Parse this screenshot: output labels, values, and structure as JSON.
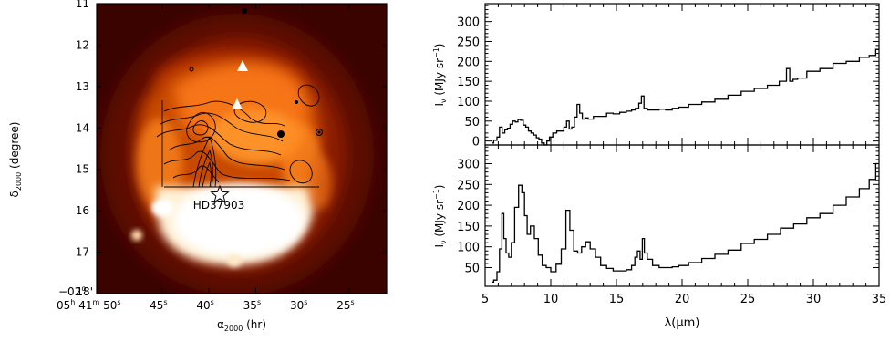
{
  "chart_data": [
    {
      "type": "heatmap",
      "xlabel_main": "α",
      "xlabel_sub": "2000",
      "xlabel_unit": " (hr)",
      "ylabel_main": "δ",
      "ylabel_sub": "2000",
      "ylabel_unit": " (degree)",
      "y_ticks": [
        "11",
        "12",
        "13",
        "14",
        "15",
        "16",
        "17",
        "18'"
      ],
      "y_tick_values": [
        11,
        12,
        13,
        14,
        15,
        16,
        17,
        18
      ],
      "y_corner_label": "−02",
      "y_corner_degree": "o",
      "x_ticks": [
        "45",
        "40",
        "35",
        "30",
        "25"
      ],
      "x_tick_values": [
        45,
        40,
        35,
        30,
        25
      ],
      "x_tick_sup": "s",
      "x_corner_h": "05",
      "x_corner_h_sup": "h",
      "x_corner_m": "41",
      "x_corner_m_sup": "m",
      "x_corner_s": "50",
      "x_corner_s_sup": "s",
      "ylim": [
        11,
        18
      ],
      "xlim": [
        52,
        21
      ],
      "star_label": "HD37903",
      "star_position": [
        38,
        15.57
      ],
      "triangle_positions": [
        [
          36,
          12.45
        ],
        [
          36.5,
          13.3
        ]
      ],
      "colors": {
        "hot": "#ffffff",
        "warm": "#ff9a2e",
        "mid": "#c83a00",
        "cool": "#6a0c00",
        "bg": "#3a0300"
      }
    },
    {
      "type": "line",
      "panel": "upper",
      "ylabel": "I",
      "ylabel_sub": "ν",
      "ylabel_unit": " (MJy sr",
      "ylabel_sup": "−1",
      "ylabel_close": ")",
      "yticks": [
        "0",
        "50",
        "100",
        "150",
        "200",
        "250",
        "300"
      ],
      "ytick_values": [
        0,
        50,
        100,
        150,
        200,
        250,
        300
      ],
      "ylim": [
        -10,
        345
      ],
      "xlim": [
        5,
        35
      ],
      "x": [
        5.5,
        5.8,
        6.0,
        6.2,
        6.4,
        6.6,
        6.8,
        7.0,
        7.2,
        7.4,
        7.6,
        7.8,
        8.0,
        8.2,
        8.4,
        8.6,
        8.8,
        9.0,
        9.2,
        9.4,
        9.6,
        9.8,
        10.0,
        10.3,
        10.6,
        10.9,
        11.1,
        11.3,
        11.5,
        11.7,
        11.9,
        12.1,
        12.3,
        12.5,
        12.7,
        13.0,
        13.5,
        14.0,
        14.5,
        15.0,
        15.5,
        16.0,
        16.3,
        16.6,
        16.8,
        17.0,
        17.2,
        17.5,
        18.0,
        18.5,
        19.0,
        19.5,
        20.0,
        21.0,
        22.0,
        23.0,
        24.0,
        25.0,
        26.0,
        27.0,
        27.8,
        28.1,
        28.3,
        28.6,
        29.0,
        30.0,
        31.0,
        32.0,
        33.0,
        34.0,
        34.5,
        35.0
      ],
      "y": [
        -5,
        2,
        10,
        35,
        20,
        28,
        32,
        42,
        50,
        48,
        54,
        52,
        40,
        35,
        25,
        20,
        15,
        8,
        5,
        -5,
        -10,
        0,
        10,
        20,
        25,
        25,
        35,
        50,
        30,
        35,
        60,
        92,
        70,
        55,
        58,
        55,
        62,
        62,
        70,
        68,
        72,
        75,
        78,
        82,
        95,
        113,
        82,
        78,
        78,
        80,
        78,
        82,
        85,
        92,
        98,
        105,
        115,
        125,
        132,
        140,
        150,
        182,
        150,
        155,
        158,
        175,
        182,
        195,
        200,
        210,
        215,
        230
      ]
    },
    {
      "type": "line",
      "panel": "lower",
      "ylabel": "I",
      "ylabel_sub": "ν",
      "ylabel_unit": " (MJy sr",
      "ylabel_sup": "−1",
      "ylabel_close": ")",
      "xlabel": "λ(μm)",
      "xticks": [
        "5",
        "10",
        "15",
        "20",
        "25",
        "30",
        "35"
      ],
      "xtick_values": [
        5,
        10,
        15,
        20,
        25,
        30,
        35
      ],
      "yticks": [
        "50",
        "100",
        "150",
        "200",
        "250",
        "300"
      ],
      "ytick_values": [
        50,
        100,
        150,
        200,
        250,
        300
      ],
      "ylim": [
        5,
        345
      ],
      "xlim": [
        5,
        35
      ],
      "x": [
        5.5,
        5.8,
        6.0,
        6.2,
        6.35,
        6.5,
        6.7,
        6.9,
        7.1,
        7.4,
        7.7,
        7.9,
        8.1,
        8.3,
        8.6,
        8.9,
        9.2,
        9.5,
        9.8,
        10.2,
        10.6,
        11.0,
        11.3,
        11.6,
        11.9,
        12.2,
        12.5,
        12.8,
        13.2,
        13.6,
        14.0,
        14.5,
        15.0,
        15.5,
        16.0,
        16.3,
        16.5,
        16.7,
        16.9,
        17.05,
        17.2,
        17.5,
        18.0,
        18.5,
        19.0,
        19.5,
        20.0,
        21.0,
        22.0,
        23.0,
        24.0,
        25.0,
        26.0,
        27.0,
        28.0,
        29.0,
        30.0,
        31.0,
        32.0,
        33.0,
        34.0,
        34.5,
        35.0
      ],
      "y": [
        15,
        20,
        40,
        95,
        180,
        120,
        85,
        75,
        110,
        195,
        248,
        230,
        175,
        130,
        150,
        120,
        80,
        55,
        50,
        40,
        58,
        95,
        188,
        140,
        90,
        85,
        100,
        112,
        95,
        75,
        55,
        48,
        42,
        42,
        45,
        55,
        75,
        90,
        70,
        120,
        85,
        70,
        55,
        50,
        50,
        52,
        55,
        62,
        72,
        82,
        92,
        108,
        118,
        130,
        145,
        155,
        170,
        180,
        200,
        220,
        240,
        262,
        300
      ]
    }
  ]
}
